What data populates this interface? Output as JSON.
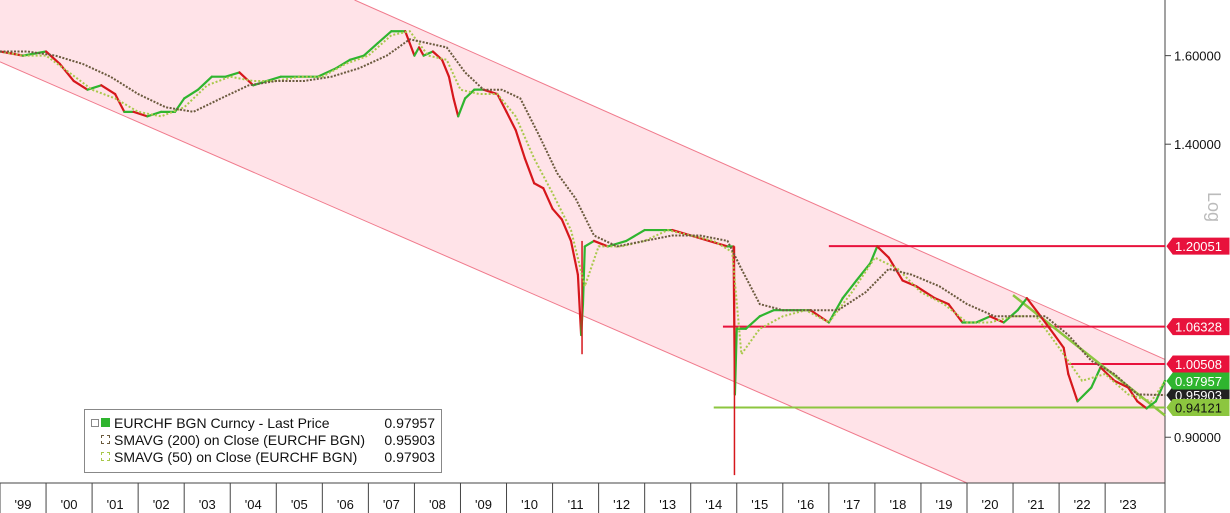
{
  "chart_data": {
    "type": "line",
    "scale": "log",
    "scale_label": "Log",
    "ylim": [
      0.84,
      1.74
    ],
    "xlim": [
      1999.0,
      2024.3
    ],
    "y_ticks": [
      {
        "value": 1.6,
        "label": "1.60000"
      },
      {
        "value": 1.4,
        "label": "1.40000"
      },
      {
        "value": 0.9,
        "label": "0.90000"
      }
    ],
    "x_ticks": [
      {
        "value": 1999,
        "label": "'99"
      },
      {
        "value": 2000,
        "label": "'00"
      },
      {
        "value": 2001,
        "label": "'01"
      },
      {
        "value": 2002,
        "label": "'02"
      },
      {
        "value": 2003,
        "label": "'03"
      },
      {
        "value": 2004,
        "label": "'04"
      },
      {
        "value": 2005,
        "label": "'05"
      },
      {
        "value": 2006,
        "label": "'06"
      },
      {
        "value": 2007,
        "label": "'07"
      },
      {
        "value": 2008,
        "label": "'08"
      },
      {
        "value": 2009,
        "label": "'09"
      },
      {
        "value": 2010,
        "label": "'10"
      },
      {
        "value": 2011,
        "label": "'11"
      },
      {
        "value": 2012,
        "label": "'12"
      },
      {
        "value": 2013,
        "label": "'13"
      },
      {
        "value": 2014,
        "label": "'14"
      },
      {
        "value": 2015,
        "label": "'15"
      },
      {
        "value": 2016,
        "label": "'16"
      },
      {
        "value": 2017,
        "label": "'17"
      },
      {
        "value": 2018,
        "label": "'18"
      },
      {
        "value": 2019,
        "label": "'19"
      },
      {
        "value": 2020,
        "label": "'20"
      },
      {
        "value": 2021,
        "label": "'21"
      },
      {
        "value": 2022,
        "label": "'22"
      },
      {
        "value": 2023,
        "label": "'23"
      }
    ],
    "price_color_up": "#2fb52f",
    "price_color_down": "#d6171c",
    "series": [
      {
        "name": "EURCHF BGN Curncy - Last Price",
        "value_label": "0.97957",
        "color": "#2fb52f",
        "x": [
          1999.0,
          1999.5,
          2000.0,
          2000.3,
          2000.6,
          2000.9,
          2001.2,
          2001.5,
          2001.7,
          2001.9,
          2002.2,
          2002.5,
          2002.8,
          2003.0,
          2003.3,
          2003.6,
          2003.9,
          2004.2,
          2004.5,
          2004.8,
          2005.1,
          2005.5,
          2005.9,
          2006.3,
          2006.6,
          2006.9,
          2007.2,
          2007.5,
          2007.8,
          2008.0,
          2008.1,
          2008.2,
          2008.4,
          2008.6,
          2008.75,
          2008.85,
          2008.95,
          2009.1,
          2009.3,
          2009.5,
          2009.8,
          2010.0,
          2010.2,
          2010.4,
          2010.6,
          2010.8,
          2011.0,
          2011.2,
          2011.4,
          2011.55,
          2011.62,
          2011.66,
          2011.7,
          2011.9,
          2012.2,
          2012.6,
          2013.0,
          2013.3,
          2013.6,
          2014.0,
          2014.4,
          2014.8,
          2014.93,
          2014.96,
          2015.0,
          2015.2,
          2015.5,
          2015.8,
          2016.2,
          2016.6,
          2017.0,
          2017.3,
          2017.6,
          2017.9,
          2018.05,
          2018.3,
          2018.6,
          2018.9,
          2019.3,
          2019.6,
          2019.9,
          2020.2,
          2020.5,
          2020.8,
          2021.1,
          2021.3,
          2021.6,
          2021.9,
          2022.1,
          2022.2,
          2022.4,
          2022.7,
          2022.9,
          2023.2,
          2023.5,
          2023.7,
          2023.9,
          2024.1,
          2024.3
        ],
        "y": [
          1.61,
          1.6,
          1.61,
          1.58,
          1.54,
          1.52,
          1.53,
          1.51,
          1.47,
          1.47,
          1.46,
          1.47,
          1.47,
          1.5,
          1.52,
          1.55,
          1.55,
          1.56,
          1.53,
          1.54,
          1.55,
          1.55,
          1.55,
          1.57,
          1.59,
          1.6,
          1.63,
          1.66,
          1.66,
          1.6,
          1.62,
          1.6,
          1.61,
          1.59,
          1.55,
          1.5,
          1.46,
          1.5,
          1.52,
          1.52,
          1.51,
          1.47,
          1.43,
          1.37,
          1.32,
          1.31,
          1.27,
          1.25,
          1.21,
          1.15,
          1.05,
          1.1,
          1.2,
          1.21,
          1.2,
          1.21,
          1.23,
          1.23,
          1.23,
          1.22,
          1.21,
          1.2,
          1.2,
          0.96,
          1.06,
          1.06,
          1.08,
          1.09,
          1.09,
          1.09,
          1.07,
          1.11,
          1.14,
          1.17,
          1.2,
          1.18,
          1.14,
          1.13,
          1.11,
          1.1,
          1.07,
          1.07,
          1.08,
          1.07,
          1.09,
          1.11,
          1.08,
          1.05,
          1.03,
          0.99,
          0.95,
          0.97,
          1.0,
          0.98,
          0.97,
          0.95,
          0.94,
          0.95,
          0.98
        ]
      },
      {
        "name": "SMAVG (200)  on Close (EURCHF BGN)",
        "value_label": "0.95903",
        "color": "#6b5a3e",
        "x": [
          1999.0,
          1999.6,
          2000.2,
          2000.8,
          2001.4,
          2002.0,
          2002.6,
          2003.2,
          2003.8,
          2004.4,
          2005.0,
          2005.6,
          2006.2,
          2006.8,
          2007.4,
          2007.9,
          2008.3,
          2008.7,
          2009.1,
          2009.5,
          2009.9,
          2010.3,
          2010.7,
          2011.1,
          2011.5,
          2011.9,
          2012.4,
          2013.0,
          2013.6,
          2014.2,
          2014.8,
          2015.1,
          2015.5,
          2016.0,
          2016.6,
          2017.2,
          2017.8,
          2018.3,
          2018.8,
          2019.4,
          2020.0,
          2020.6,
          2021.2,
          2021.7,
          2022.2,
          2022.7,
          2023.2,
          2023.7,
          2024.3
        ],
        "y": [
          1.61,
          1.61,
          1.6,
          1.58,
          1.55,
          1.51,
          1.48,
          1.47,
          1.5,
          1.53,
          1.54,
          1.54,
          1.55,
          1.57,
          1.6,
          1.64,
          1.63,
          1.62,
          1.56,
          1.52,
          1.52,
          1.5,
          1.42,
          1.34,
          1.29,
          1.22,
          1.2,
          1.21,
          1.22,
          1.22,
          1.21,
          1.16,
          1.1,
          1.09,
          1.09,
          1.09,
          1.12,
          1.16,
          1.15,
          1.13,
          1.1,
          1.08,
          1.08,
          1.08,
          1.05,
          1.01,
          0.99,
          0.96,
          0.959
        ]
      },
      {
        "name": "SMAVG (50)  on Close (EURCHF BGN)",
        "value_label": "0.97903",
        "color": "#a8c84a",
        "x": [
          1999.0,
          1999.5,
          2000.0,
          2000.5,
          2001.0,
          2001.5,
          2002.0,
          2002.5,
          2003.0,
          2003.5,
          2004.0,
          2004.5,
          2005.0,
          2005.5,
          2006.0,
          2006.5,
          2007.0,
          2007.5,
          2007.9,
          2008.3,
          2008.7,
          2009.0,
          2009.4,
          2009.8,
          2010.2,
          2010.6,
          2011.0,
          2011.4,
          2011.7,
          2012.0,
          2012.5,
          2013.0,
          2013.5,
          2014.0,
          2014.5,
          2014.9,
          2015.1,
          2015.5,
          2016.0,
          2016.5,
          2017.0,
          2017.5,
          2018.0,
          2018.5,
          2019.0,
          2019.5,
          2020.0,
          2020.5,
          2021.0,
          2021.5,
          2022.0,
          2022.5,
          2023.0,
          2023.5,
          2024.0,
          2024.3
        ],
        "y": [
          1.61,
          1.6,
          1.6,
          1.56,
          1.52,
          1.5,
          1.47,
          1.46,
          1.48,
          1.53,
          1.55,
          1.54,
          1.54,
          1.55,
          1.55,
          1.58,
          1.6,
          1.65,
          1.66,
          1.6,
          1.59,
          1.52,
          1.51,
          1.51,
          1.46,
          1.37,
          1.3,
          1.23,
          1.13,
          1.2,
          1.2,
          1.21,
          1.23,
          1.22,
          1.21,
          1.19,
          1.02,
          1.06,
          1.08,
          1.09,
          1.07,
          1.12,
          1.18,
          1.16,
          1.12,
          1.1,
          1.07,
          1.07,
          1.08,
          1.08,
          1.03,
          0.98,
          0.99,
          0.96,
          0.95,
          0.979
        ]
      }
    ],
    "channel": {
      "upper": [
        [
          2006.7,
          1.74
        ],
        [
          2024.3,
          1.012
        ]
      ],
      "lower": [
        [
          1999.0,
          1.585
        ],
        [
          2020.0,
          0.84
        ]
      ],
      "fill": "#ffe3e8",
      "line": "#f07a8c"
    },
    "levels": [
      {
        "value": 1.20051,
        "label": "1.20051",
        "x_start": 2017.0,
        "color": "#e8123c"
      },
      {
        "value": 1.06328,
        "label": "1.06328",
        "x_start": 2014.7,
        "color": "#e8123c"
      },
      {
        "value": 1.00508,
        "label": "1.00508",
        "x_start": 2022.2,
        "color": "#e8123c"
      },
      {
        "value": 0.94121,
        "label": "0.94121",
        "x_start": 2014.5,
        "color": "#8cc63f"
      }
    ],
    "trendline": {
      "from": [
        2021.0,
        1.115
      ],
      "to": [
        2024.3,
        0.93
      ],
      "color": "#8cc63f"
    },
    "last_values": [
      {
        "value": 0.97957,
        "label": "0.97957",
        "color": "#2fb52f"
      },
      {
        "value": 0.95903,
        "label": "0.95903",
        "color": "#222222"
      }
    ]
  }
}
